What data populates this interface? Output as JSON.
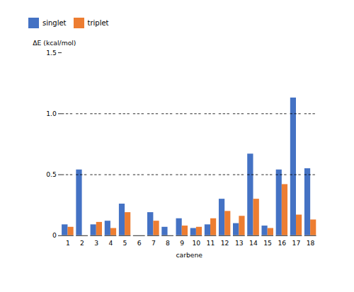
{
  "chart_data": {
    "type": "bar",
    "categories": [
      1,
      2,
      3,
      4,
      5,
      6,
      7,
      8,
      9,
      10,
      11,
      12,
      13,
      14,
      15,
      16,
      17,
      18
    ],
    "series": [
      {
        "name": "singlet",
        "color": "#4472C4",
        "values": [
          0.09,
          0.54,
          0.09,
          0.12,
          0.26,
          0.0,
          0.19,
          0.07,
          0.14,
          0.06,
          0.09,
          0.3,
          0.1,
          0.67,
          0.08,
          0.54,
          1.13,
          0.55
        ]
      },
      {
        "name": "triplet",
        "color": "#ED7D31",
        "values": [
          0.07,
          0.0,
          0.11,
          0.06,
          0.19,
          0.0,
          0.12,
          0.0,
          0.08,
          0.07,
          0.14,
          0.2,
          0.16,
          0.3,
          0.06,
          0.42,
          0.17,
          0.13
        ]
      }
    ],
    "xlabel": "carbene",
    "ylabel": "ΔE (kcal/mol)",
    "ylim": [
      0,
      1.5
    ],
    "yticks": [
      0,
      0.5,
      {
        "value": 1.0,
        "label": "1.0"
      },
      1.5
    ],
    "hlines": [
      0.5,
      1.0
    ],
    "grid": false,
    "legend": "top"
  }
}
